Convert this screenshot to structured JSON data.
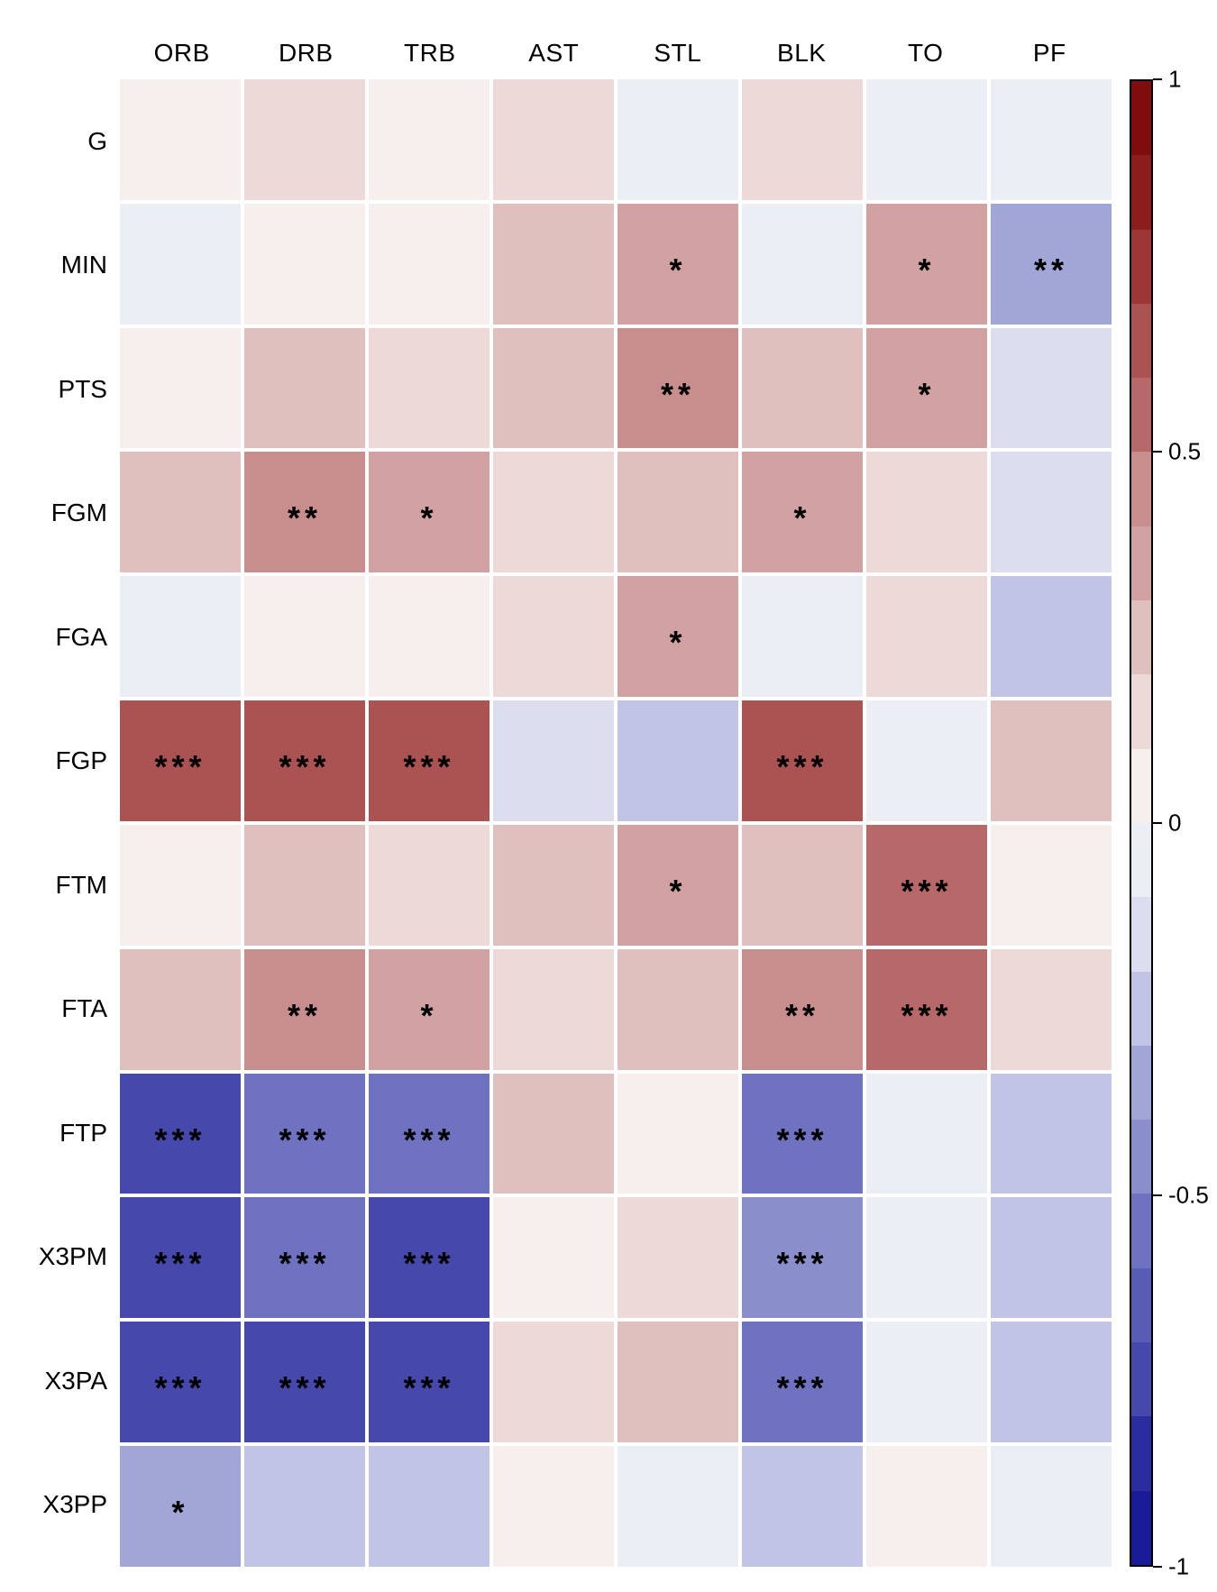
{
  "chart_data": {
    "type": "heatmap",
    "title": "",
    "description": "Correlation heatmap of basketball statistics with significance stars",
    "rows": [
      "G",
      "MIN",
      "PTS",
      "FGM",
      "FGA",
      "FGP",
      "FTM",
      "FTA",
      "FTP",
      "X3PM",
      "X3PA",
      "X3PP"
    ],
    "columns": [
      "ORB",
      "DRB",
      "TRB",
      "AST",
      "STL",
      "BLK",
      "TO",
      "PF"
    ],
    "values": [
      [
        0.05,
        0.15,
        0.05,
        0.15,
        -0.05,
        0.15,
        -0.05,
        -0.05
      ],
      [
        -0.05,
        0.05,
        0.05,
        0.25,
        0.35,
        -0.05,
        0.35,
        -0.38
      ],
      [
        0.05,
        0.28,
        0.15,
        0.28,
        0.42,
        0.25,
        0.38,
        -0.15
      ],
      [
        0.25,
        0.42,
        0.38,
        0.15,
        0.25,
        0.38,
        0.15,
        -0.15
      ],
      [
        -0.05,
        0.05,
        0.05,
        0.15,
        0.35,
        -0.05,
        0.15,
        -0.28
      ],
      [
        0.68,
        0.68,
        0.68,
        -0.13,
        -0.27,
        0.68,
        -0.05,
        0.22
      ],
      [
        0.05,
        0.25,
        0.18,
        0.25,
        0.3,
        0.25,
        0.55,
        0.05
      ],
      [
        0.25,
        0.42,
        0.38,
        0.15,
        0.25,
        0.45,
        0.58,
        0.15
      ],
      [
        -0.72,
        -0.55,
        -0.55,
        0.28,
        0.05,
        -0.55,
        -0.05,
        -0.22
      ],
      [
        -0.72,
        -0.55,
        -0.72,
        0.05,
        0.1,
        -0.45,
        -0.1,
        -0.22
      ],
      [
        -0.72,
        -0.72,
        -0.72,
        0.15,
        0.28,
        -0.55,
        -0.05,
        -0.25
      ],
      [
        -0.35,
        -0.25,
        -0.27,
        0.05,
        -0.05,
        -0.25,
        0.05,
        -0.05
      ]
    ],
    "significance": [
      [
        "",
        "",
        "",
        "",
        "",
        "",
        "",
        ""
      ],
      [
        "",
        "",
        "",
        "",
        "*",
        "",
        "*",
        "**"
      ],
      [
        "",
        "",
        "",
        "",
        "**",
        "",
        "*",
        ""
      ],
      [
        "",
        "**",
        "*",
        "",
        "",
        "*",
        "",
        ""
      ],
      [
        "",
        "",
        "",
        "",
        "*",
        "",
        "",
        ""
      ],
      [
        "***",
        "***",
        "***",
        "",
        "",
        "***",
        "",
        ""
      ],
      [
        "",
        "",
        "",
        "",
        "*",
        "",
        "***",
        ""
      ],
      [
        "",
        "**",
        "*",
        "",
        "",
        "**",
        "***",
        ""
      ],
      [
        "***",
        "***",
        "***",
        "",
        "",
        "***",
        "",
        ""
      ],
      [
        "***",
        "***",
        "***",
        "",
        "",
        "***",
        "",
        ""
      ],
      [
        "***",
        "***",
        "***",
        "",
        "",
        "***",
        "",
        ""
      ],
      [
        "*",
        "",
        "",
        "",
        "",
        "",
        "",
        ""
      ]
    ],
    "colorbar": {
      "min": -1,
      "max": 1,
      "ticks": [
        1,
        0.5,
        0,
        -0.5,
        -1
      ],
      "tick_labels": [
        "1",
        "0.5",
        "0",
        "-0.5",
        "-1"
      ],
      "steps": 20,
      "color_positive_max": "#800d0d",
      "color_zero": "#f5f1f3",
      "color_negative_max": "#191b97"
    },
    "colormap": "red-white-blue diverging",
    "grid": false,
    "legend_position": "right"
  }
}
